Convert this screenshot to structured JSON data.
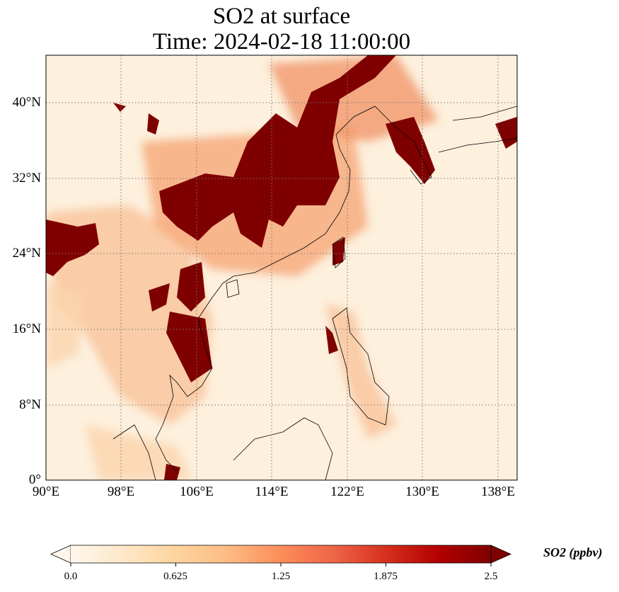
{
  "title": {
    "line1": "SO2 at surface",
    "line2": "Time: 2024-02-18 11:00:00"
  },
  "map": {
    "lon_range": [
      90,
      140
    ],
    "lat_range": [
      0,
      45
    ],
    "x_ticks": [
      "90°E",
      "98°E",
      "106°E",
      "114°E",
      "122°E",
      "130°E",
      "138°E"
    ],
    "x_tick_values": [
      90,
      98,
      106,
      114,
      122,
      130,
      138
    ],
    "y_ticks": [
      "0°",
      "8°N",
      "16°N",
      "24°N",
      "32°N",
      "40°N"
    ],
    "y_tick_values": [
      0,
      8,
      16,
      24,
      32,
      40
    ],
    "gridlines": "dotted"
  },
  "colorbar": {
    "label": "SO2 (ppbv)",
    "ticks": [
      "0.0",
      "0.625",
      "1.25",
      "1.875",
      "2.5"
    ],
    "tick_values": [
      0,
      0.625,
      1.25,
      1.875,
      2.5
    ],
    "colormap": [
      "#fff7ec",
      "#fee8c8",
      "#fdd49e",
      "#fdbb84",
      "#fc8d59",
      "#ef6548",
      "#d7301f",
      "#b30000",
      "#7f0000"
    ],
    "extend": "both"
  }
}
